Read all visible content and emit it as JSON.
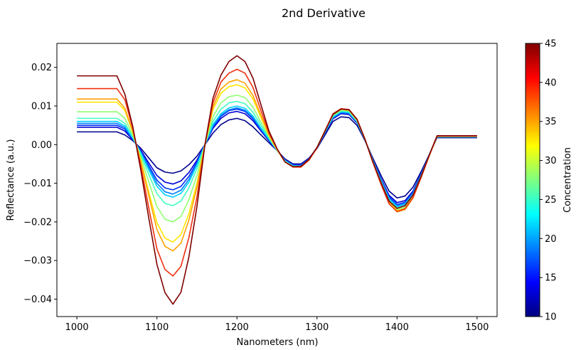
{
  "chart_data": {
    "type": "line",
    "title": "2nd Derivative",
    "xlabel": "Nanometers (nm)",
    "ylabel": "Reflectance (a.u.)",
    "xlim": [
      975,
      1525
    ],
    "ylim": [
      -0.0445,
      0.0262
    ],
    "xticks": [
      1000,
      1100,
      1200,
      1300,
      1400,
      1500
    ],
    "xtick_labels": [
      "1000",
      "1100",
      "1200",
      "1300",
      "1400",
      "1500"
    ],
    "yticks": [
      -0.04,
      -0.03,
      -0.02,
      -0.01,
      0.0,
      0.01,
      0.02
    ],
    "ytick_labels": [
      "−0.04",
      "−0.03",
      "−0.02",
      "−0.01",
      "0.00",
      "0.01",
      "0.02"
    ],
    "x": [
      1000,
      1010,
      1020,
      1030,
      1040,
      1050,
      1060,
      1070,
      1080,
      1090,
      1100,
      1110,
      1120,
      1130,
      1140,
      1150,
      1160,
      1170,
      1180,
      1190,
      1200,
      1210,
      1220,
      1230,
      1240,
      1250,
      1260,
      1270,
      1280,
      1290,
      1300,
      1310,
      1320,
      1330,
      1340,
      1350,
      1360,
      1370,
      1380,
      1390,
      1400,
      1410,
      1420,
      1430,
      1440,
      1450,
      1460,
      1470,
      1480,
      1490,
      1500
    ],
    "series": [
      {
        "name": "10",
        "color": "#00008f",
        "values": [
          0.0033,
          0.0033,
          0.0033,
          0.0033,
          0.0033,
          0.0033,
          0.0025,
          0.001,
          -0.001,
          -0.0035,
          -0.006,
          -0.0071,
          -0.0074,
          -0.0068,
          -0.0052,
          -0.003,
          0.0,
          0.003,
          0.0052,
          0.0064,
          0.0068,
          0.0062,
          0.0046,
          0.0025,
          0.0005,
          -0.0015,
          -0.0037,
          -0.005,
          -0.005,
          -0.0035,
          -0.001,
          0.0025,
          0.006,
          0.0072,
          0.007,
          0.005,
          0.001,
          -0.0036,
          -0.008,
          -0.012,
          -0.0138,
          -0.0133,
          -0.011,
          -0.007,
          -0.0027,
          0.0018,
          0.0018,
          0.0018,
          0.0018,
          0.0018,
          0.0018
        ]
      },
      {
        "name": "13",
        "color": "#0000d4",
        "values": [
          0.0045,
          0.0045,
          0.0045,
          0.0045,
          0.0045,
          0.0045,
          0.0035,
          0.0012,
          -0.0015,
          -0.0048,
          -0.008,
          -0.0097,
          -0.0102,
          -0.0094,
          -0.0072,
          -0.004,
          0.0,
          0.0042,
          0.0068,
          0.0082,
          0.0086,
          0.008,
          0.0062,
          0.0035,
          0.001,
          -0.0015,
          -0.004,
          -0.0052,
          -0.0052,
          -0.0037,
          -0.0008,
          0.003,
          0.0067,
          0.008,
          0.0078,
          0.0056,
          0.0012,
          -0.004,
          -0.0088,
          -0.0131,
          -0.015,
          -0.0145,
          -0.012,
          -0.0075,
          -0.0028,
          0.002,
          0.002,
          0.002,
          0.002,
          0.002,
          0.002
        ]
      },
      {
        "name": "16",
        "color": "#0030ff",
        "values": [
          0.005,
          0.005,
          0.005,
          0.005,
          0.005,
          0.005,
          0.004,
          0.0014,
          -0.0018,
          -0.0055,
          -0.0092,
          -0.0112,
          -0.0117,
          -0.0108,
          -0.0082,
          -0.0045,
          0.0,
          0.0045,
          0.0073,
          0.0088,
          0.0092,
          0.0086,
          0.0067,
          0.0038,
          0.0012,
          -0.0015,
          -0.004,
          -0.0053,
          -0.0053,
          -0.0037,
          -0.0008,
          0.0031,
          0.0069,
          0.0082,
          0.008,
          0.0058,
          0.0012,
          -0.0041,
          -0.009,
          -0.0135,
          -0.0155,
          -0.0149,
          -0.0123,
          -0.0077,
          -0.0028,
          0.002,
          0.002,
          0.002,
          0.002,
          0.002,
          0.002
        ]
      },
      {
        "name": "19",
        "color": "#0080ff",
        "values": [
          0.0055,
          0.0055,
          0.0055,
          0.0055,
          0.0055,
          0.0055,
          0.0044,
          0.0015,
          -0.002,
          -0.006,
          -0.01,
          -0.0122,
          -0.0128,
          -0.0118,
          -0.009,
          -0.005,
          0.0,
          0.0048,
          0.0076,
          0.009,
          0.0095,
          0.0089,
          0.007,
          0.004,
          0.0013,
          -0.0015,
          -0.0041,
          -0.0054,
          -0.0054,
          -0.0038,
          -0.0008,
          0.0032,
          0.007,
          0.0083,
          0.0081,
          0.0058,
          0.0012,
          -0.0042,
          -0.0092,
          -0.0138,
          -0.0158,
          -0.0152,
          -0.0125,
          -0.0078,
          -0.0028,
          0.002,
          0.002,
          0.002,
          0.002,
          0.002,
          0.002
        ]
      },
      {
        "name": "22",
        "color": "#00d0ff",
        "values": [
          0.006,
          0.006,
          0.006,
          0.006,
          0.006,
          0.006,
          0.0048,
          0.0017,
          -0.0022,
          -0.0066,
          -0.0108,
          -0.013,
          -0.0136,
          -0.0126,
          -0.0097,
          -0.0053,
          0.0,
          0.0052,
          0.008,
          0.0095,
          0.01,
          0.0094,
          0.0074,
          0.0043,
          0.0014,
          -0.0015,
          -0.0042,
          -0.0055,
          -0.0055,
          -0.0039,
          -0.0008,
          0.0033,
          0.0072,
          0.0085,
          0.0083,
          0.006,
          0.0013,
          -0.0043,
          -0.0094,
          -0.0141,
          -0.0161,
          -0.0155,
          -0.0128,
          -0.008,
          -0.0028,
          0.0021,
          0.0021,
          0.0021,
          0.0021,
          0.0021,
          0.0021
        ]
      },
      {
        "name": "25",
        "color": "#40ffc0",
        "values": [
          0.0068,
          0.0068,
          0.0068,
          0.0068,
          0.0068,
          0.0068,
          0.0055,
          0.0019,
          -0.0026,
          -0.0078,
          -0.0127,
          -0.0152,
          -0.0158,
          -0.0146,
          -0.0112,
          -0.0062,
          0.0,
          0.006,
          0.0092,
          0.0108,
          0.0112,
          0.0106,
          0.0084,
          0.005,
          0.0017,
          -0.0014,
          -0.0043,
          -0.0056,
          -0.0056,
          -0.0039,
          -0.0008,
          0.0034,
          0.0074,
          0.0087,
          0.0085,
          0.0061,
          0.0013,
          -0.0044,
          -0.0096,
          -0.0144,
          -0.0164,
          -0.0158,
          -0.013,
          -0.0081,
          -0.0029,
          0.0021,
          0.0021,
          0.0021,
          0.0021,
          0.0021,
          0.0021
        ]
      },
      {
        "name": "28",
        "color": "#90ff70",
        "values": [
          0.0085,
          0.0085,
          0.0085,
          0.0085,
          0.0085,
          0.0085,
          0.0068,
          0.0024,
          -0.0033,
          -0.0098,
          -0.016,
          -0.0193,
          -0.02,
          -0.0186,
          -0.0142,
          -0.0079,
          0.0,
          0.0072,
          0.0108,
          0.0124,
          0.0128,
          0.0122,
          0.0097,
          0.0058,
          0.002,
          -0.0014,
          -0.0044,
          -0.0057,
          -0.0057,
          -0.004,
          -0.0008,
          0.0035,
          0.0076,
          0.0089,
          0.0087,
          0.0062,
          0.0013,
          -0.0045,
          -0.0098,
          -0.0147,
          -0.0168,
          -0.0162,
          -0.0133,
          -0.0083,
          -0.003,
          0.0021,
          0.0021,
          0.0021,
          0.0021,
          0.0021,
          0.0021
        ]
      },
      {
        "name": "31",
        "color": "#ffe600",
        "values": [
          0.011,
          0.011,
          0.011,
          0.011,
          0.011,
          0.011,
          0.0088,
          0.0031,
          -0.0042,
          -0.0124,
          -0.0202,
          -0.0242,
          -0.0252,
          -0.0233,
          -0.0178,
          -0.01,
          0.0,
          0.009,
          0.0133,
          0.015,
          0.0155,
          0.0147,
          0.0118,
          0.007,
          0.0024,
          -0.0013,
          -0.0045,
          -0.0058,
          -0.0058,
          -0.004,
          -0.0008,
          0.0036,
          0.0078,
          0.0091,
          0.0089,
          0.0064,
          0.0014,
          -0.0046,
          -0.01,
          -0.015,
          -0.0171,
          -0.0165,
          -0.0136,
          -0.0085,
          -0.003,
          0.0022,
          0.0022,
          0.0022,
          0.0022,
          0.0022,
          0.0022
        ]
      },
      {
        "name": "34",
        "color": "#ffa000",
        "values": [
          0.0118,
          0.0118,
          0.0118,
          0.0118,
          0.0118,
          0.0118,
          0.0094,
          0.0033,
          -0.0046,
          -0.0134,
          -0.022,
          -0.0263,
          -0.0275,
          -0.0255,
          -0.0195,
          -0.011,
          0.0,
          0.0098,
          0.0144,
          0.0162,
          0.0168,
          0.0159,
          0.0127,
          0.0076,
          0.0026,
          -0.0012,
          -0.0045,
          -0.0058,
          -0.0058,
          -0.004,
          -0.0008,
          0.0036,
          0.0079,
          0.0093,
          0.009,
          0.0065,
          0.0014,
          -0.0047,
          -0.0102,
          -0.0152,
          -0.0174,
          -0.0168,
          -0.0138,
          -0.0086,
          -0.003,
          0.0022,
          0.0022,
          0.0022,
          0.0022,
          0.0022,
          0.0022
        ]
      },
      {
        "name": "38",
        "color": "#ee3010",
        "values": [
          0.0145,
          0.0145,
          0.0145,
          0.0145,
          0.0145,
          0.0145,
          0.0116,
          0.0041,
          -0.0057,
          -0.0166,
          -0.027,
          -0.0323,
          -0.034,
          -0.0315,
          -0.024,
          -0.0135,
          0.0,
          0.0108,
          0.0162,
          0.0185,
          0.0195,
          0.0185,
          0.0148,
          0.0088,
          0.003,
          -0.0011,
          -0.0045,
          -0.0058,
          -0.0058,
          -0.004,
          -0.0008,
          0.0036,
          0.008,
          0.0093,
          0.0091,
          0.0066,
          0.0014,
          -0.0047,
          -0.0103,
          -0.0153,
          -0.0173,
          -0.0166,
          -0.0137,
          -0.0085,
          -0.003,
          0.0022,
          0.0022,
          0.0022,
          0.0022,
          0.0022,
          0.0022
        ]
      },
      {
        "name": "45",
        "color": "#800000",
        "values": [
          0.0178,
          0.0178,
          0.0178,
          0.0178,
          0.0178,
          0.0178,
          0.013,
          0.0045,
          -0.0068,
          -0.0192,
          -0.031,
          -0.0383,
          -0.0413,
          -0.0382,
          -0.029,
          -0.016,
          0.0,
          0.012,
          0.018,
          0.0215,
          0.023,
          0.0215,
          0.0172,
          0.0103,
          0.0035,
          -0.001,
          -0.0045,
          -0.0057,
          -0.0056,
          -0.0038,
          -0.0007,
          0.0035,
          0.0078,
          0.0092,
          0.009,
          0.0065,
          0.0013,
          -0.0045,
          -0.0098,
          -0.0146,
          -0.0165,
          -0.0158,
          -0.013,
          -0.0082,
          -0.0028,
          0.0023,
          0.0023,
          0.0023,
          0.0023,
          0.0023,
          0.0023
        ]
      }
    ],
    "colorbar": {
      "label": "Concentration",
      "range": [
        10,
        45
      ],
      "ticks": [
        10,
        15,
        20,
        25,
        30,
        35,
        40,
        45
      ],
      "tick_labels": [
        "10",
        "15",
        "20",
        "25",
        "30",
        "35",
        "40",
        "45"
      ],
      "colormap": "jet",
      "stops": [
        "#00007f",
        "#0000ff",
        "#007fff",
        "#00ffff",
        "#7fff7f",
        "#ffff00",
        "#ff7f00",
        "#ff0000",
        "#7f0000"
      ]
    }
  }
}
